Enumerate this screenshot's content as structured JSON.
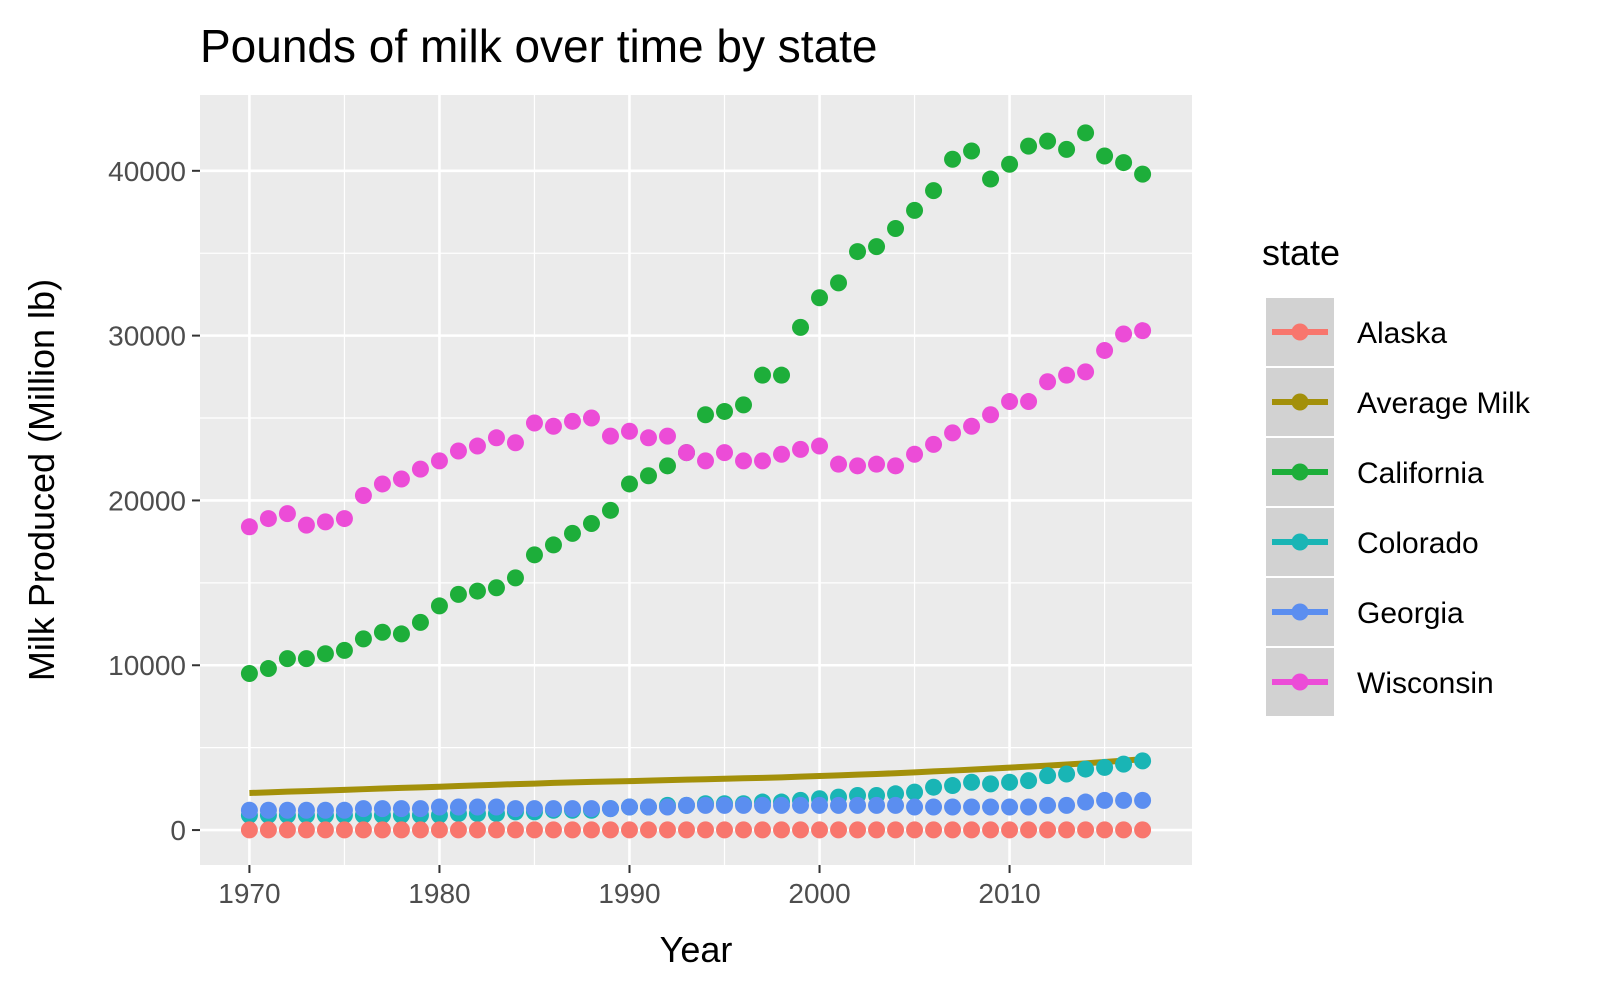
{
  "chart_data": {
    "type": "scatter",
    "title": "Pounds of milk over time by state",
    "xlabel": "Year",
    "ylabel": "Milk Produced (Million lb)",
    "xlim": [
      1967.4,
      2019.6
    ],
    "ylim": [
      -2120,
      44600
    ],
    "xticks": [
      1970,
      1980,
      1990,
      2000,
      2010
    ],
    "yticks": [
      0,
      10000,
      20000,
      30000,
      40000
    ],
    "grid": true,
    "legend": {
      "title": "state",
      "placement": "right"
    },
    "x": [
      1970,
      1971,
      1972,
      1973,
      1974,
      1975,
      1976,
      1977,
      1978,
      1979,
      1980,
      1981,
      1982,
      1983,
      1984,
      1985,
      1986,
      1987,
      1988,
      1989,
      1990,
      1991,
      1992,
      1993,
      1994,
      1995,
      1996,
      1997,
      1998,
      1999,
      2000,
      2001,
      2002,
      2003,
      2004,
      2005,
      2006,
      2007,
      2008,
      2009,
      2010,
      2011,
      2012,
      2013,
      2014,
      2015,
      2016,
      2017
    ],
    "series": [
      {
        "name": "Alaska",
        "color": "#F8766D",
        "mark": "point",
        "values": [
          10,
          10,
          10,
          10,
          10,
          10,
          10,
          10,
          10,
          10,
          10,
          10,
          10,
          10,
          10,
          10,
          10,
          10,
          10,
          10,
          10,
          10,
          10,
          10,
          10,
          10,
          10,
          10,
          10,
          10,
          10,
          10,
          10,
          10,
          10,
          10,
          10,
          10,
          10,
          10,
          10,
          10,
          10,
          10,
          10,
          10,
          10,
          10
        ]
      },
      {
        "name": "Average Milk",
        "color": "#A3900A",
        "mark": "line",
        "values": [
          2250,
          2290,
          2330,
          2360,
          2400,
          2440,
          2480,
          2520,
          2560,
          2590,
          2630,
          2670,
          2710,
          2750,
          2790,
          2820,
          2860,
          2890,
          2920,
          2950,
          2970,
          3000,
          3030,
          3060,
          3080,
          3110,
          3140,
          3170,
          3200,
          3240,
          3280,
          3320,
          3360,
          3400,
          3450,
          3500,
          3560,
          3610,
          3670,
          3730,
          3790,
          3850,
          3910,
          3980,
          4050,
          4130,
          4210,
          4300
        ]
      },
      {
        "name": "California",
        "color": "#1DAE3A",
        "mark": "point",
        "values": [
          9500,
          9800,
          10400,
          10400,
          10700,
          10900,
          11600,
          12000,
          11900,
          12600,
          13600,
          14300,
          14500,
          14700,
          15300,
          16700,
          17300,
          18000,
          18600,
          19400,
          21000,
          21500,
          22100,
          22900,
          25200,
          25400,
          25800,
          27600,
          27600,
          30500,
          32300,
          33200,
          35100,
          35400,
          36500,
          37600,
          38800,
          40700,
          41200,
          39500,
          40400,
          41500,
          41800,
          41300,
          42300,
          40900,
          40500,
          39800
        ]
      },
      {
        "name": "Colorado",
        "color": "#19B5B5",
        "mark": "point",
        "values": [
          900,
          900,
          900,
          900,
          900,
          900,
          900,
          900,
          900,
          900,
          900,
          1000,
          1000,
          1000,
          1100,
          1100,
          1200,
          1200,
          1200,
          1300,
          1400,
          1400,
          1500,
          1500,
          1600,
          1600,
          1600,
          1700,
          1700,
          1800,
          1900,
          2000,
          2100,
          2100,
          2200,
          2300,
          2600,
          2700,
          2900,
          2800,
          2900,
          3000,
          3300,
          3400,
          3700,
          3800,
          4000,
          4200
        ]
      },
      {
        "name": "Georgia",
        "color": "#5B8EF0",
        "mark": "point",
        "values": [
          1200,
          1200,
          1200,
          1200,
          1200,
          1200,
          1300,
          1300,
          1300,
          1300,
          1400,
          1400,
          1400,
          1400,
          1300,
          1300,
          1300,
          1300,
          1300,
          1300,
          1400,
          1400,
          1400,
          1500,
          1500,
          1500,
          1500,
          1500,
          1500,
          1500,
          1500,
          1500,
          1500,
          1500,
          1500,
          1400,
          1400,
          1400,
          1400,
          1400,
          1400,
          1400,
          1500,
          1500,
          1700,
          1800,
          1800,
          1800
        ]
      },
      {
        "name": "Wisconsin",
        "color": "#EC4CD7",
        "mark": "point",
        "values": [
          18400,
          18900,
          19200,
          18500,
          18700,
          18900,
          20300,
          21000,
          21300,
          21900,
          22400,
          23000,
          23300,
          23800,
          23500,
          24700,
          24500,
          24800,
          25000,
          23900,
          24200,
          23800,
          23900,
          22900,
          22400,
          22900,
          22400,
          22400,
          22800,
          23100,
          23300,
          22200,
          22100,
          22200,
          22100,
          22800,
          23400,
          24100,
          24500,
          25200,
          26000,
          26000,
          27200,
          27600,
          27800,
          29100,
          30100,
          30300
        ]
      }
    ]
  }
}
